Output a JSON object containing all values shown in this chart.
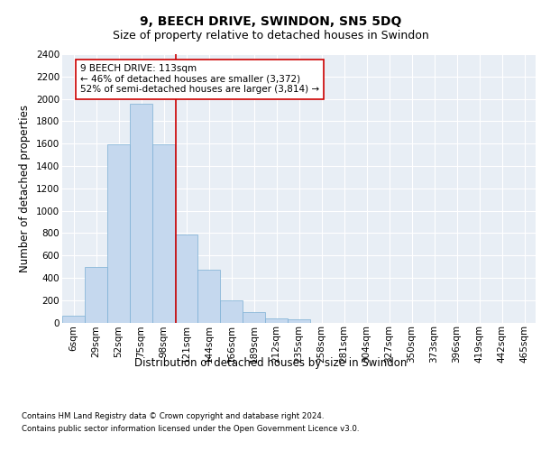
{
  "title": "9, BEECH DRIVE, SWINDON, SN5 5DQ",
  "subtitle": "Size of property relative to detached houses in Swindon",
  "xlabel": "Distribution of detached houses by size in Swindon",
  "ylabel": "Number of detached properties",
  "categories": [
    "6sqm",
    "29sqm",
    "52sqm",
    "75sqm",
    "98sqm",
    "121sqm",
    "144sqm",
    "166sqm",
    "189sqm",
    "212sqm",
    "235sqm",
    "258sqm",
    "281sqm",
    "304sqm",
    "327sqm",
    "350sqm",
    "373sqm",
    "396sqm",
    "419sqm",
    "442sqm",
    "465sqm"
  ],
  "bar_values": [
    60,
    500,
    1590,
    1960,
    1590,
    790,
    470,
    195,
    90,
    35,
    25,
    0,
    0,
    0,
    0,
    0,
    0,
    0,
    0,
    0,
    0
  ],
  "bar_color": "#c5d8ee",
  "bar_edge_color": "#7bafd4",
  "vline_x": 4.52,
  "vline_color": "#cc0000",
  "annotation_text": "9 BEECH DRIVE: 113sqm\n← 46% of detached houses are smaller (3,372)\n52% of semi-detached houses are larger (3,814) →",
  "annotation_box_color": "#ffffff",
  "annotation_box_edge": "#cc0000",
  "ylim": [
    0,
    2400
  ],
  "yticks": [
    0,
    200,
    400,
    600,
    800,
    1000,
    1200,
    1400,
    1600,
    1800,
    2000,
    2200,
    2400
  ],
  "bg_color": "#e8eef5",
  "footer1": "Contains HM Land Registry data © Crown copyright and database right 2024.",
  "footer2": "Contains public sector information licensed under the Open Government Licence v3.0.",
  "title_fontsize": 10,
  "subtitle_fontsize": 9,
  "axis_label_fontsize": 8.5,
  "tick_fontsize": 7.5,
  "annot_fontsize": 7.5
}
